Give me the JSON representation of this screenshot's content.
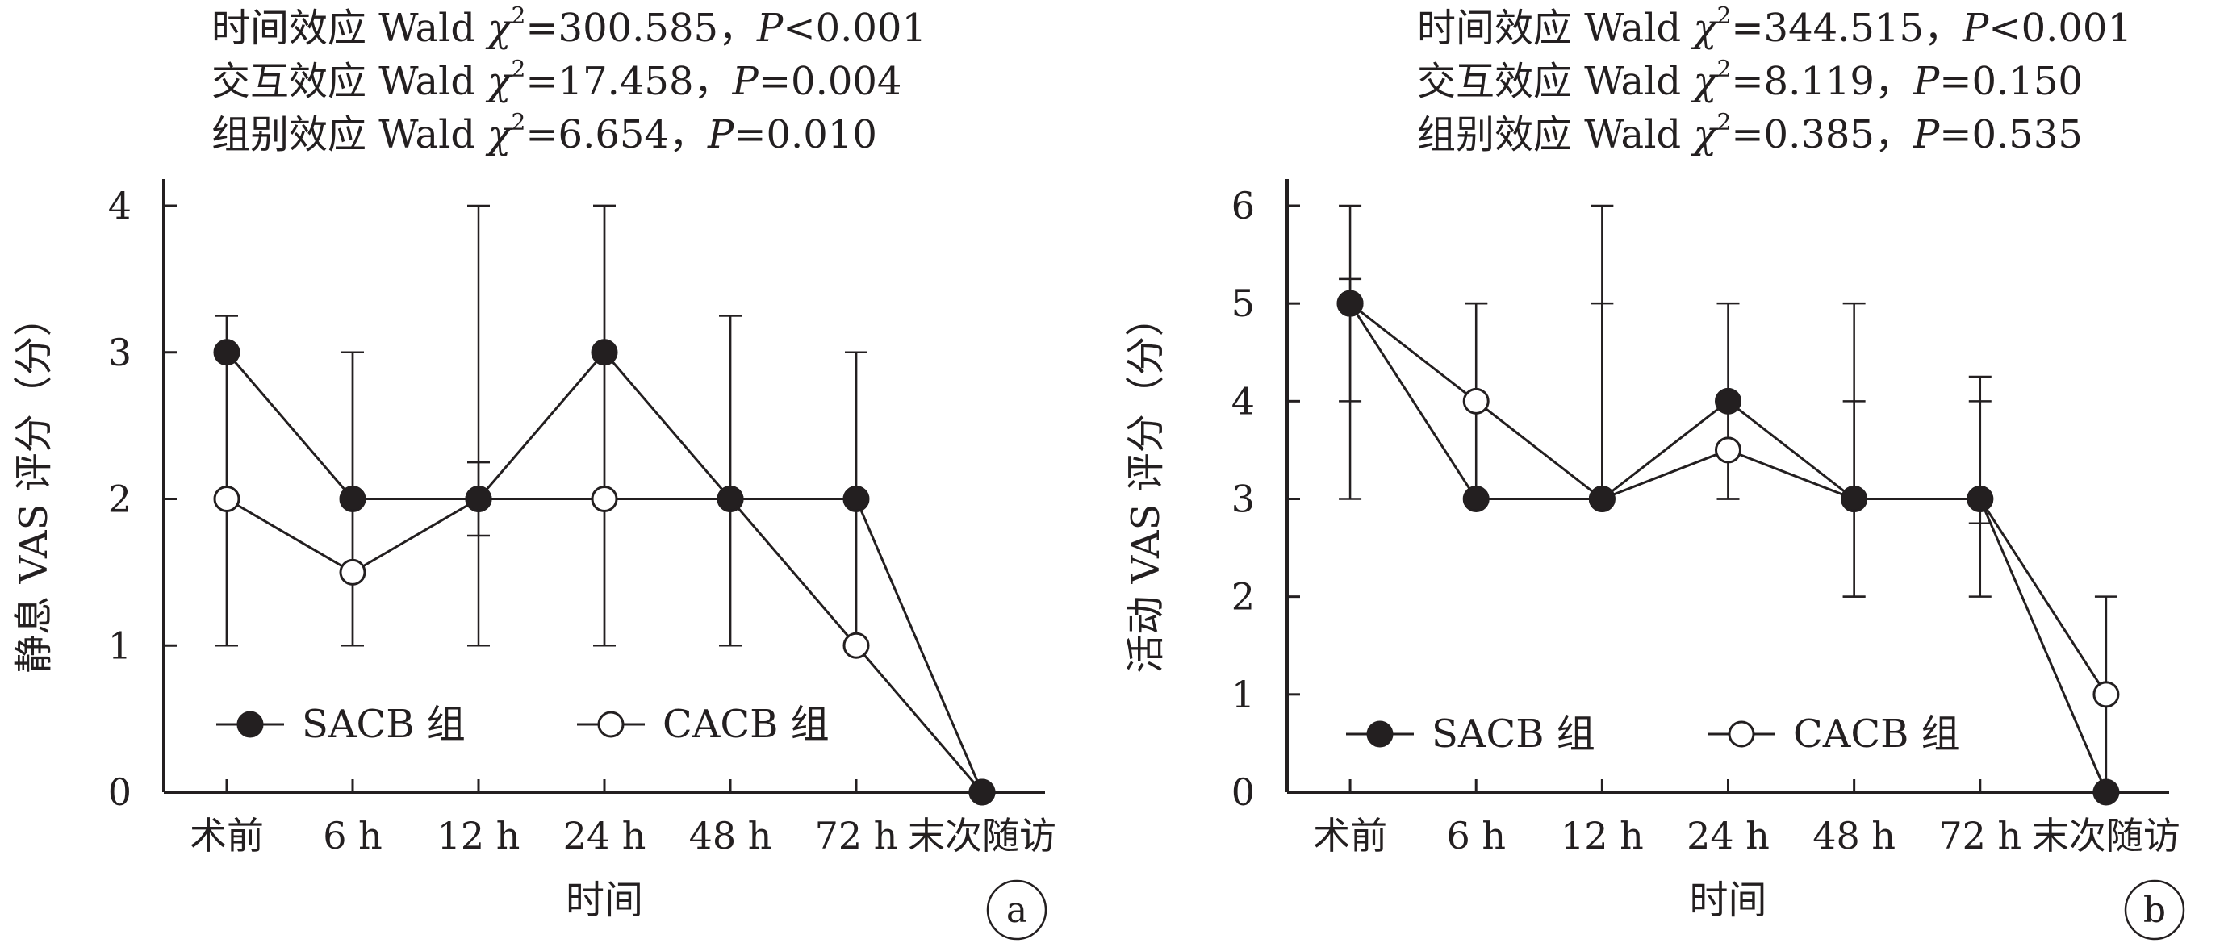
{
  "chart_data": [
    {
      "type": "line",
      "panel_label": "a",
      "stats_lines": [
        {
          "effect": "时间效应",
          "wald": "Wald",
          "chi": "χ",
          "sup": "2",
          "chi_value": "=300.585，",
          "p": "P",
          "p_value": "<0.001"
        },
        {
          "effect": "交互效应",
          "wald": "Wald",
          "chi": "χ",
          "sup": "2",
          "chi_value": "=17.458，",
          "p": "P",
          "p_value": "=0.004"
        },
        {
          "effect": "组别效应",
          "wald": "Wald",
          "chi": "χ",
          "sup": "2",
          "chi_value": "=6.654，",
          "p": "P",
          "p_value": "=0.010"
        }
      ],
      "xlabel": "时间",
      "ylabel": "静息 VAS 评分（分）",
      "categories": [
        "术前",
        "6 h",
        "12 h",
        "24 h",
        "48 h",
        "72 h",
        "末次随访"
      ],
      "ylim": [
        0,
        4
      ],
      "yticks": [
        0,
        1,
        2,
        3,
        4
      ],
      "legend_position": "bottom-left",
      "series": [
        {
          "name": "SACB 组",
          "marker": "filled-circle",
          "color": "#231f20",
          "values": [
            3,
            2,
            2,
            3,
            2,
            2,
            0
          ],
          "error_low": [
            1,
            1,
            1.75,
            1,
            1,
            1,
            0
          ],
          "error_high": [
            3.25,
            3,
            4,
            4,
            3.25,
            3,
            0
          ]
        },
        {
          "name": "CACB 组",
          "marker": "open-circle",
          "color": "#231f20",
          "values": [
            2,
            1.5,
            2,
            2,
            2,
            1,
            0
          ],
          "error_low": [
            1,
            1,
            1,
            1,
            1,
            1,
            0
          ],
          "error_high": [
            3.25,
            3,
            2.25,
            4,
            3.25,
            3,
            0
          ]
        }
      ]
    },
    {
      "type": "line",
      "panel_label": "b",
      "stats_lines": [
        {
          "effect": "时间效应",
          "wald": "Wald",
          "chi": "χ",
          "sup": "2",
          "chi_value": "=344.515，",
          "p": "P",
          "p_value": "<0.001"
        },
        {
          "effect": "交互效应",
          "wald": "Wald",
          "chi": "χ",
          "sup": "2",
          "chi_value": "=8.119，",
          "p": "P",
          "p_value": "=0.150"
        },
        {
          "effect": "组别效应",
          "wald": "Wald",
          "chi": "χ",
          "sup": "2",
          "chi_value": "=0.385，",
          "p": "P",
          "p_value": "=0.535"
        }
      ],
      "xlabel": "时间",
      "ylabel": "活动 VAS 评分（分）",
      "categories": [
        "术前",
        "6 h",
        "12 h",
        "24 h",
        "48 h",
        "72 h",
        "末次随访"
      ],
      "ylim": [
        0,
        6
      ],
      "yticks": [
        0,
        1,
        2,
        3,
        4,
        5,
        6
      ],
      "legend_position": "bottom-left",
      "series": [
        {
          "name": "SACB 组",
          "marker": "filled-circle",
          "color": "#231f20",
          "values": [
            5,
            3,
            3,
            4,
            3,
            3,
            0
          ],
          "error_low": [
            3,
            3,
            3,
            3,
            2,
            2,
            0
          ],
          "error_high": [
            6,
            5,
            6,
            5,
            5,
            4.25,
            0
          ]
        },
        {
          "name": "CACB 组",
          "marker": "open-circle",
          "color": "#231f20",
          "values": [
            5,
            4,
            3,
            3.5,
            3,
            3,
            1
          ],
          "error_low": [
            4,
            3,
            3,
            3,
            2,
            2.75,
            0
          ],
          "error_high": [
            5.25,
            5,
            5,
            4,
            4,
            4,
            2
          ]
        }
      ]
    }
  ]
}
